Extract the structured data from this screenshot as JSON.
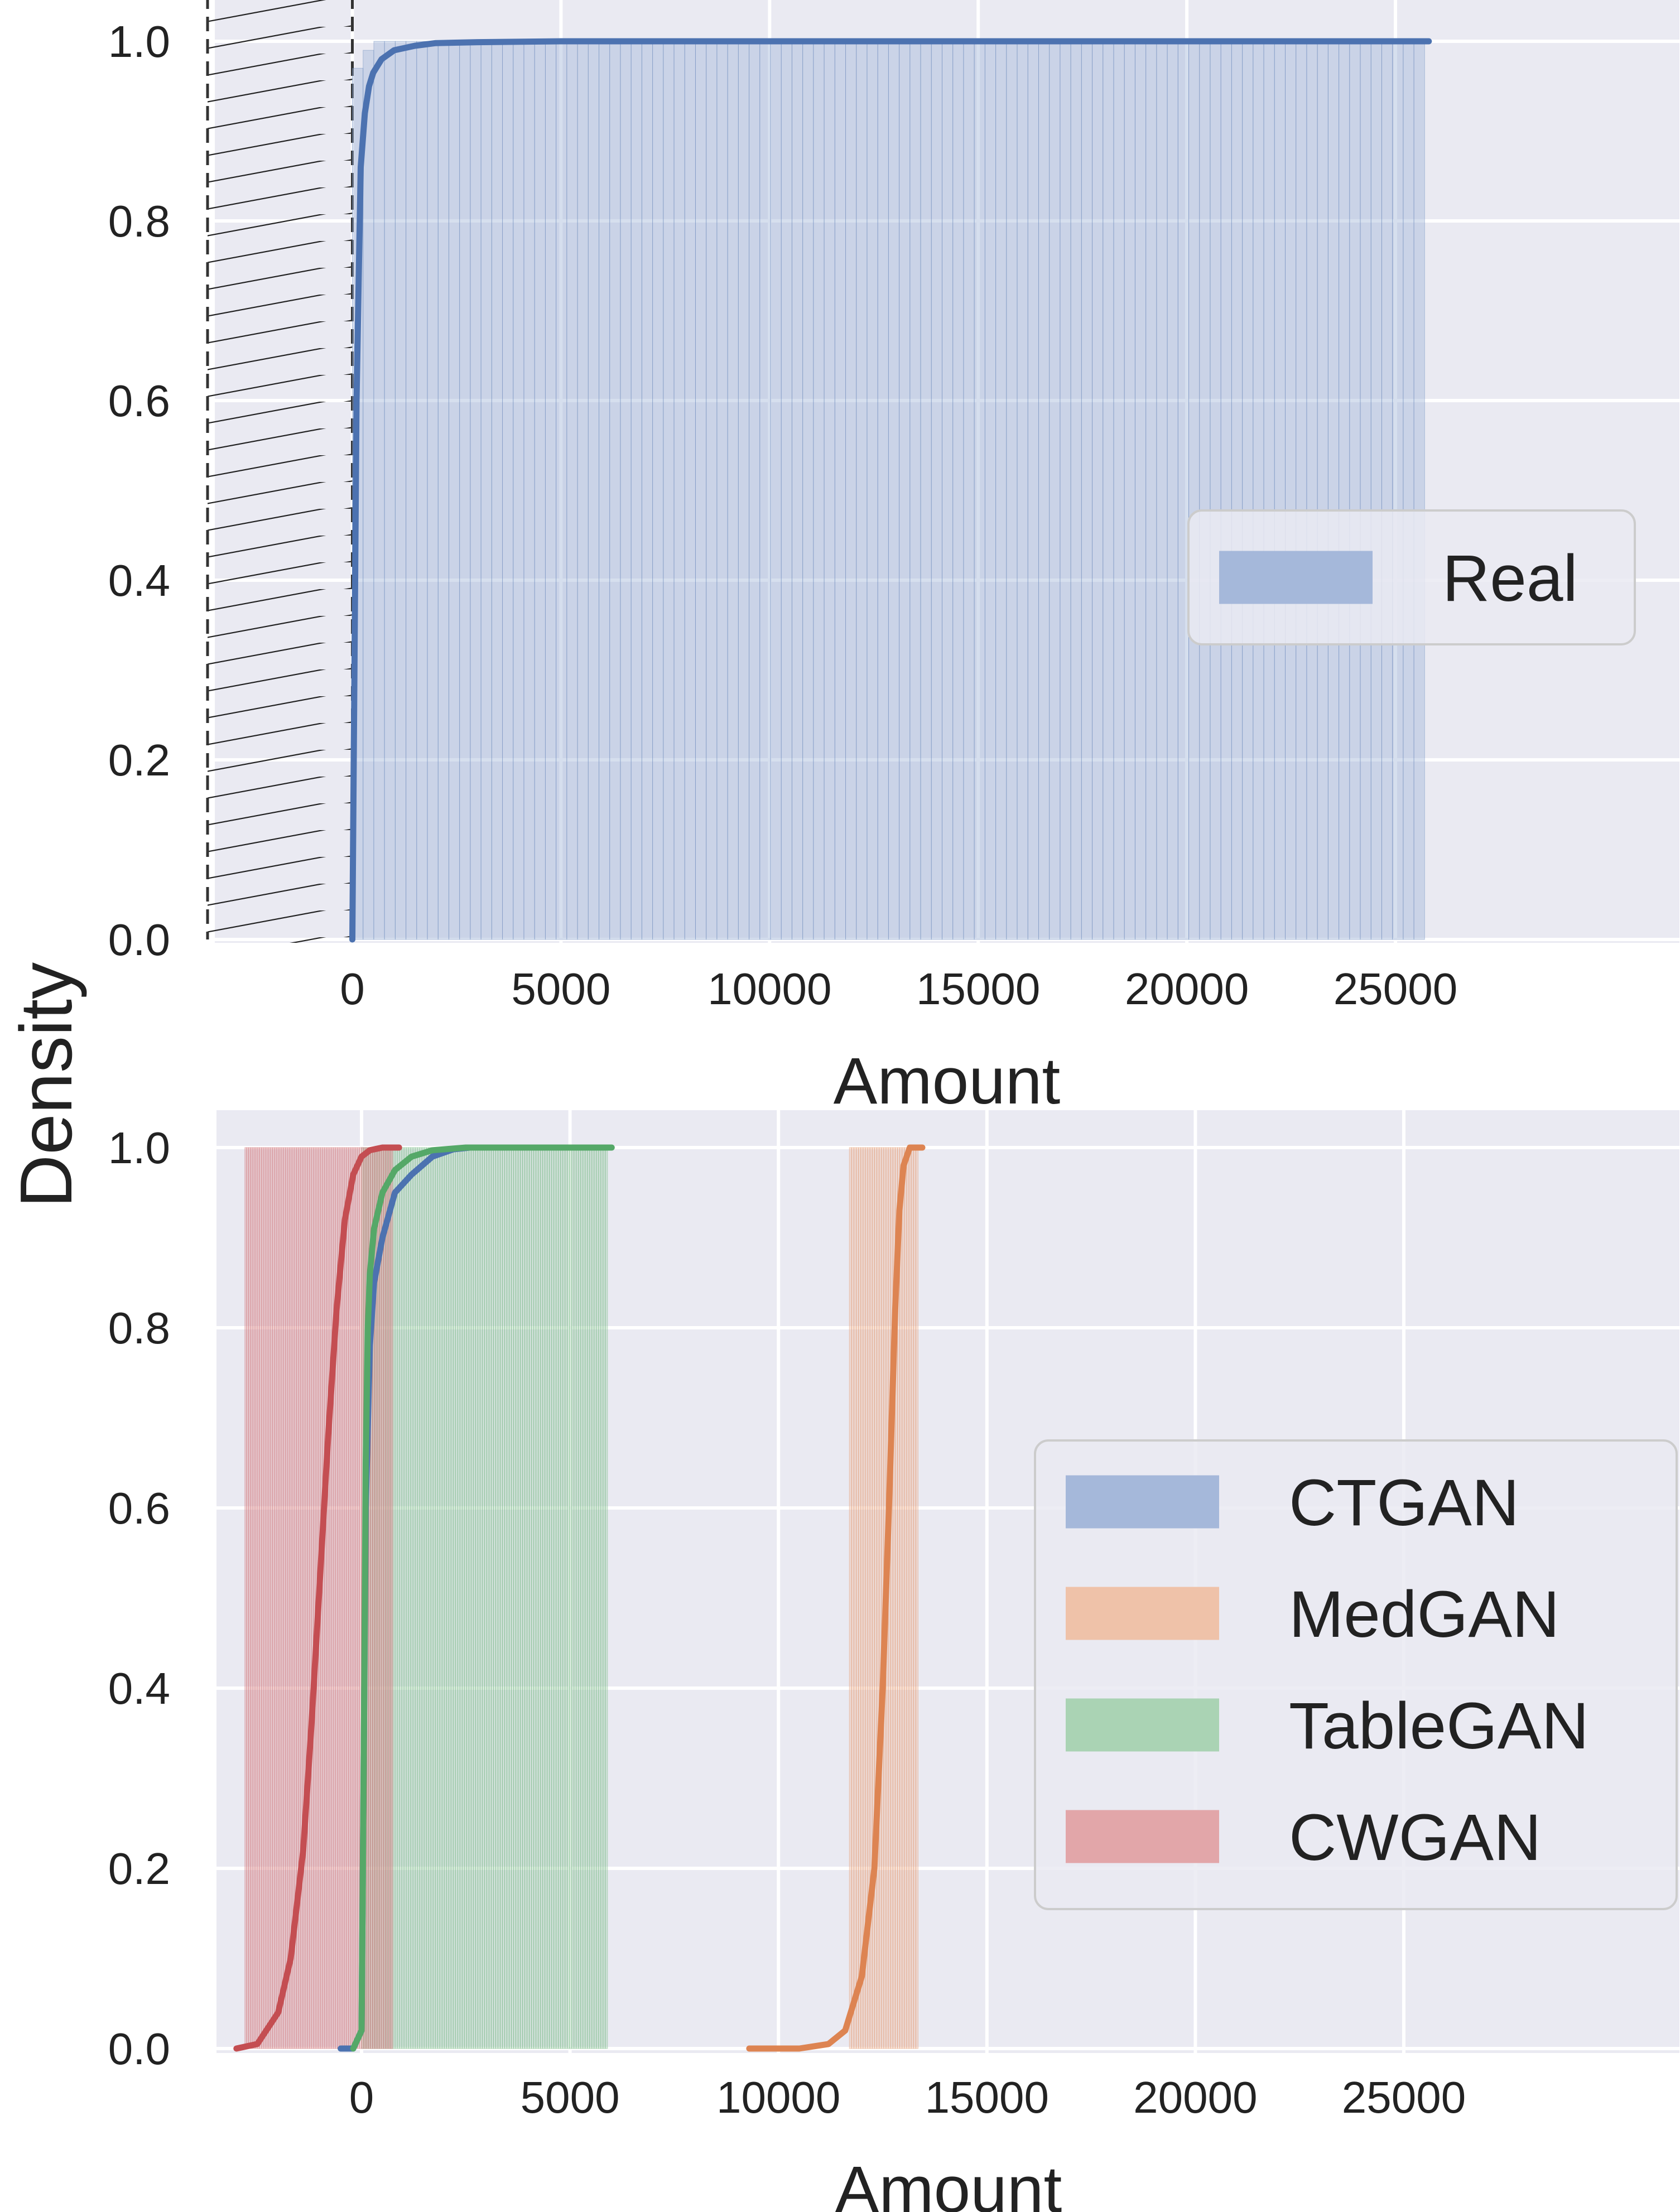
{
  "figure": {
    "shared_ylabel": "Density"
  },
  "chart_data": [
    {
      "type": "histogram_cdf",
      "xlabel": "Amount",
      "xlim": [
        -3000,
        26500
      ],
      "ylim": [
        0,
        1.03
      ],
      "xticks": [
        0,
        5000,
        10000,
        15000,
        20000,
        25000
      ],
      "xtick_labels": [
        "0",
        "5000",
        "10000",
        "15000",
        "20000",
        "25000"
      ],
      "yticks": [
        0.0,
        0.2,
        0.4,
        0.6,
        0.8,
        1.0
      ],
      "ytick_labels": [
        "0.0",
        "0.2",
        "0.4",
        "0.6",
        "0.8",
        "1.0"
      ],
      "grid": true,
      "legend_position": "center-right",
      "hatched_region": {
        "x_from": -3000,
        "x_to": 0
      },
      "series": [
        {
          "name": "Real",
          "color": "#4c72b0",
          "bar_color": "#a5b8da",
          "bins": {
            "start": 0,
            "end": 25700,
            "count": 100,
            "first_bar_height": 0.97,
            "second_bar_height": 0.99,
            "other_bar_height": 1.0
          },
          "cdf": {
            "x": [
              0,
              100,
              200,
              300,
              400,
              500,
              700,
              1000,
              1500,
              2000,
              3000,
              5000,
              10000,
              25800
            ],
            "y": [
              0.0,
              0.6,
              0.86,
              0.92,
              0.95,
              0.965,
              0.98,
              0.99,
              0.995,
              0.998,
              0.999,
              1.0,
              1.0,
              1.0
            ]
          }
        }
      ]
    },
    {
      "type": "histogram_cdf",
      "xlabel": "Amount",
      "xlim": [
        -3000,
        26500
      ],
      "ylim": [
        0,
        1.03
      ],
      "xticks": [
        0,
        5000,
        10000,
        15000,
        20000,
        25000
      ],
      "xtick_labels": [
        "0",
        "5000",
        "10000",
        "15000",
        "20000",
        "25000"
      ],
      "yticks": [
        0.0,
        0.2,
        0.4,
        0.6,
        0.8,
        1.0
      ],
      "ytick_labels": [
        "0.0",
        "0.2",
        "0.4",
        "0.6",
        "0.8",
        "1.0"
      ],
      "grid": true,
      "legend_position": "center-right",
      "series": [
        {
          "name": "CTGAN",
          "color": "#4c72b0",
          "bar_color": "#a5b8da",
          "cdf": {
            "x": [
              -500,
              -200,
              0,
              100,
              200,
              300,
              500,
              800,
              1200,
              1700,
              2200,
              2600
            ],
            "y": [
              0.0,
              0.0,
              0.02,
              0.6,
              0.78,
              0.85,
              0.9,
              0.95,
              0.97,
              0.99,
              0.998,
              1.0
            ]
          }
        },
        {
          "name": "MedGAN",
          "color": "#dd8452",
          "bar_color": "#efc2a9",
          "bins": {
            "start": 11700,
            "end": 13350,
            "count": 30
          },
          "cdf": {
            "x": [
              9300,
              10500,
              11200,
              11600,
              12000,
              12300,
              12500,
              12650,
              12800,
              12900,
              13000,
              13150,
              13450
            ],
            "y": [
              0.0,
              0.0,
              0.005,
              0.02,
              0.08,
              0.2,
              0.4,
              0.6,
              0.82,
              0.93,
              0.98,
              1.0,
              1.0
            ]
          }
        },
        {
          "name": "TableGAN",
          "color": "#55a868",
          "bar_color": "#aad3b4",
          "bins": {
            "start": 0,
            "end": 5900,
            "count": 110
          },
          "cdf": {
            "x": [
              -200,
              0,
              50,
              100,
              150,
              200,
              300,
              500,
              800,
              1200,
              1700,
              2500,
              6000
            ],
            "y": [
              0.0,
              0.02,
              0.3,
              0.65,
              0.8,
              0.86,
              0.91,
              0.95,
              0.975,
              0.99,
              0.997,
              1.0,
              1.0
            ]
          }
        },
        {
          "name": "CWGAN",
          "color": "#c44e52",
          "bar_color": "#e2a6a9",
          "bins": {
            "start": -2800,
            "end": 750,
            "count": 80
          },
          "cdf": {
            "x": [
              -3000,
              -2500,
              -2000,
              -1700,
              -1400,
              -1200,
              -1000,
              -800,
              -600,
              -400,
              -200,
              0,
              200,
              500,
              900
            ],
            "y": [
              0.0,
              0.005,
              0.04,
              0.1,
              0.22,
              0.36,
              0.52,
              0.68,
              0.82,
              0.92,
              0.97,
              0.99,
              0.997,
              1.0,
              1.0
            ]
          }
        }
      ]
    }
  ]
}
